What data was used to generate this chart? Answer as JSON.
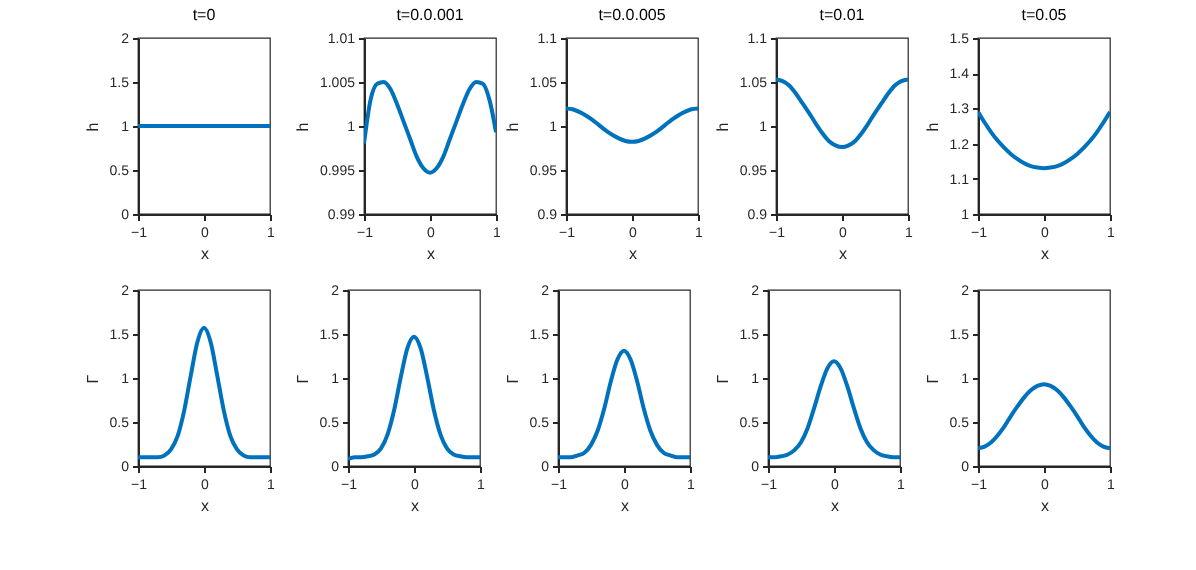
{
  "chart_data": [
    {
      "type": "line",
      "title": "t=0",
      "xlabel": "x",
      "ylabel": "h",
      "color": "#0072bd",
      "xlim": [
        -1,
        1
      ],
      "xticks": [
        -1,
        0,
        1
      ],
      "ylim": [
        0,
        2
      ],
      "yticks": [
        0,
        0.5,
        1,
        1.5,
        2
      ],
      "x": [
        -1,
        -0.9,
        -0.8,
        -0.7,
        -0.6,
        -0.5,
        -0.4,
        -0.3,
        -0.2,
        -0.1,
        0,
        0.1,
        0.2,
        0.3,
        0.4,
        0.5,
        0.6,
        0.7,
        0.8,
        0.9,
        1
      ],
      "values": [
        1,
        1,
        1,
        1,
        1,
        1,
        1,
        1,
        1,
        1,
        1,
        1,
        1,
        1,
        1,
        1,
        1,
        1,
        1,
        1,
        1
      ]
    },
    {
      "type": "line",
      "title": "t=0.0.001",
      "xlabel": "x",
      "ylabel": "h",
      "color": "#0072bd",
      "xlim": [
        -1,
        1
      ],
      "xticks": [
        -1,
        0,
        1
      ],
      "ylim": [
        0.99,
        1.01
      ],
      "yticks": [
        0.99,
        0.995,
        1,
        1.005,
        1.01
      ],
      "x": [
        -1,
        -0.9,
        -0.8,
        -0.7,
        -0.6,
        -0.5,
        -0.4,
        -0.3,
        -0.2,
        -0.1,
        0,
        0.1,
        0.2,
        0.3,
        0.4,
        0.5,
        0.6,
        0.7,
        0.8,
        0.9,
        1
      ],
      "values": [
        0.998,
        1.003,
        1.0048,
        1.005,
        1.0042,
        1.0025,
        1.0005,
        0.9985,
        0.9965,
        0.9952,
        0.9947,
        0.9952,
        0.9965,
        0.9985,
        1.0005,
        1.0025,
        1.0042,
        1.005,
        1.0048,
        1.003,
        0.9993
      ]
    },
    {
      "type": "line",
      "title": "t=0.0.005",
      "xlabel": "x",
      "ylabel": "h",
      "color": "#0072bd",
      "xlim": [
        -1,
        1
      ],
      "xticks": [
        -1,
        0,
        1
      ],
      "ylim": [
        0.9,
        1.1
      ],
      "yticks": [
        0.9,
        0.95,
        1,
        1.05,
        1.1
      ],
      "x": [
        -1,
        -0.9,
        -0.8,
        -0.7,
        -0.6,
        -0.5,
        -0.4,
        -0.3,
        -0.2,
        -0.1,
        0,
        0.1,
        0.2,
        0.3,
        0.4,
        0.5,
        0.6,
        0.7,
        0.8,
        0.9,
        1
      ],
      "values": [
        1.02,
        1.019,
        1.016,
        1.012,
        1.007,
        1.001,
        0.995,
        0.99,
        0.986,
        0.983,
        0.982,
        0.983,
        0.986,
        0.99,
        0.995,
        1.001,
        1.007,
        1.012,
        1.016,
        1.019,
        1.02
      ]
    },
    {
      "type": "line",
      "title": "t=0.01",
      "xlabel": "x",
      "ylabel": "h",
      "color": "#0072bd",
      "xlim": [
        -1,
        1
      ],
      "xticks": [
        -1,
        0,
        1
      ],
      "ylim": [
        0.9,
        1.1
      ],
      "yticks": [
        0.9,
        0.95,
        1,
        1.05,
        1.1
      ],
      "x": [
        -1,
        -0.9,
        -0.8,
        -0.7,
        -0.6,
        -0.5,
        -0.4,
        -0.3,
        -0.2,
        -0.1,
        0,
        0.1,
        0.2,
        0.3,
        0.4,
        0.5,
        0.6,
        0.7,
        0.8,
        0.9,
        1
      ],
      "values": [
        1.053,
        1.051,
        1.046,
        1.037,
        1.026,
        1.015,
        1.003,
        0.992,
        0.983,
        0.978,
        0.976,
        0.978,
        0.983,
        0.992,
        1.003,
        1.015,
        1.026,
        1.037,
        1.046,
        1.051,
        1.053
      ]
    },
    {
      "type": "line",
      "title": "t=0.05",
      "xlabel": "x",
      "ylabel": "h",
      "color": "#0072bd",
      "xlim": [
        -1,
        1
      ],
      "xticks": [
        -1,
        0,
        1
      ],
      "ylim": [
        1,
        1.5
      ],
      "yticks": [
        1,
        1.1,
        1.2,
        1.3,
        1.4,
        1.5
      ],
      "x": [
        -1,
        -0.9,
        -0.8,
        -0.7,
        -0.6,
        -0.5,
        -0.4,
        -0.3,
        -0.2,
        -0.1,
        0,
        0.1,
        0.2,
        0.3,
        0.4,
        0.5,
        0.6,
        0.7,
        0.8,
        0.9,
        1
      ],
      "values": [
        1.29,
        1.26,
        1.232,
        1.208,
        1.188,
        1.17,
        1.156,
        1.144,
        1.136,
        1.132,
        1.13,
        1.132,
        1.136,
        1.144,
        1.156,
        1.17,
        1.188,
        1.208,
        1.232,
        1.26,
        1.29
      ]
    },
    {
      "type": "line",
      "xlabel": "x",
      "ylabel": "Γ",
      "color": "#0072bd",
      "xlim": [
        -1,
        1
      ],
      "xticks": [
        -1,
        0,
        1
      ],
      "ylim": [
        0,
        2
      ],
      "yticks": [
        0,
        0.5,
        1,
        1.5,
        2
      ],
      "x": [
        -1,
        -0.9,
        -0.8,
        -0.7,
        -0.6,
        -0.5,
        -0.4,
        -0.3,
        -0.2,
        -0.1,
        0,
        0.1,
        0.2,
        0.3,
        0.4,
        0.5,
        0.6,
        0.7,
        0.8,
        0.9,
        1
      ],
      "values": [
        0.1,
        0.1,
        0.1,
        0.1,
        0.12,
        0.19,
        0.34,
        0.63,
        1.03,
        1.41,
        1.57,
        1.41,
        1.03,
        0.63,
        0.34,
        0.19,
        0.12,
        0.1,
        0.1,
        0.1,
        0.1
      ]
    },
    {
      "type": "line",
      "xlabel": "x",
      "ylabel": "Γ",
      "color": "#0072bd",
      "xlim": [
        -1,
        1
      ],
      "xticks": [
        -1,
        0,
        1
      ],
      "ylim": [
        0,
        2
      ],
      "yticks": [
        0,
        0.5,
        1,
        1.5,
        2
      ],
      "x": [
        -1,
        -0.9,
        -0.8,
        -0.7,
        -0.6,
        -0.5,
        -0.4,
        -0.3,
        -0.2,
        -0.1,
        0,
        0.1,
        0.2,
        0.3,
        0.4,
        0.5,
        0.6,
        0.7,
        0.8,
        0.9,
        1
      ],
      "values": [
        0.08,
        0.1,
        0.1,
        0.11,
        0.13,
        0.2,
        0.36,
        0.64,
        1.01,
        1.34,
        1.47,
        1.34,
        1.01,
        0.64,
        0.36,
        0.2,
        0.13,
        0.11,
        0.1,
        0.1,
        0.1
      ]
    },
    {
      "type": "line",
      "xlabel": "x",
      "ylabel": "Γ",
      "color": "#0072bd",
      "xlim": [
        -1,
        1
      ],
      "xticks": [
        -1,
        0,
        1
      ],
      "ylim": [
        0,
        2
      ],
      "yticks": [
        0,
        0.5,
        1,
        1.5,
        2
      ],
      "x": [
        -1,
        -0.9,
        -0.8,
        -0.7,
        -0.6,
        -0.5,
        -0.4,
        -0.3,
        -0.2,
        -0.1,
        0,
        0.1,
        0.2,
        0.3,
        0.4,
        0.5,
        0.6,
        0.7,
        0.8,
        0.9,
        1
      ],
      "values": [
        0.1,
        0.1,
        0.1,
        0.12,
        0.15,
        0.24,
        0.4,
        0.65,
        0.96,
        1.21,
        1.31,
        1.21,
        0.96,
        0.65,
        0.4,
        0.24,
        0.15,
        0.12,
        0.1,
        0.1,
        0.1
      ]
    },
    {
      "type": "line",
      "xlabel": "x",
      "ylabel": "Γ",
      "color": "#0072bd",
      "xlim": [
        -1,
        1
      ],
      "xticks": [
        -1,
        0,
        1
      ],
      "ylim": [
        0,
        2
      ],
      "yticks": [
        0,
        0.5,
        1,
        1.5,
        2
      ],
      "x": [
        -1,
        -0.9,
        -0.8,
        -0.7,
        -0.6,
        -0.5,
        -0.4,
        -0.3,
        -0.2,
        -0.1,
        0,
        0.1,
        0.2,
        0.3,
        0.4,
        0.5,
        0.6,
        0.7,
        0.8,
        0.9,
        1
      ],
      "values": [
        0.1,
        0.1,
        0.11,
        0.13,
        0.18,
        0.27,
        0.43,
        0.66,
        0.91,
        1.11,
        1.19,
        1.11,
        0.91,
        0.66,
        0.43,
        0.27,
        0.18,
        0.13,
        0.11,
        0.1,
        0.1
      ]
    },
    {
      "type": "line",
      "xlabel": "x",
      "ylabel": "Γ",
      "color": "#0072bd",
      "xlim": [
        -1,
        1
      ],
      "xticks": [
        -1,
        0,
        1
      ],
      "ylim": [
        0,
        2
      ],
      "yticks": [
        0,
        0.5,
        1,
        1.5,
        2
      ],
      "x": [
        -1,
        -0.9,
        -0.8,
        -0.7,
        -0.6,
        -0.5,
        -0.4,
        -0.3,
        -0.2,
        -0.1,
        0,
        0.1,
        0.2,
        0.3,
        0.4,
        0.5,
        0.6,
        0.7,
        0.8,
        0.9,
        1
      ],
      "values": [
        0.2,
        0.22,
        0.27,
        0.35,
        0.45,
        0.57,
        0.68,
        0.78,
        0.86,
        0.91,
        0.93,
        0.91,
        0.86,
        0.78,
        0.68,
        0.57,
        0.45,
        0.35,
        0.27,
        0.22,
        0.2
      ]
    }
  ]
}
